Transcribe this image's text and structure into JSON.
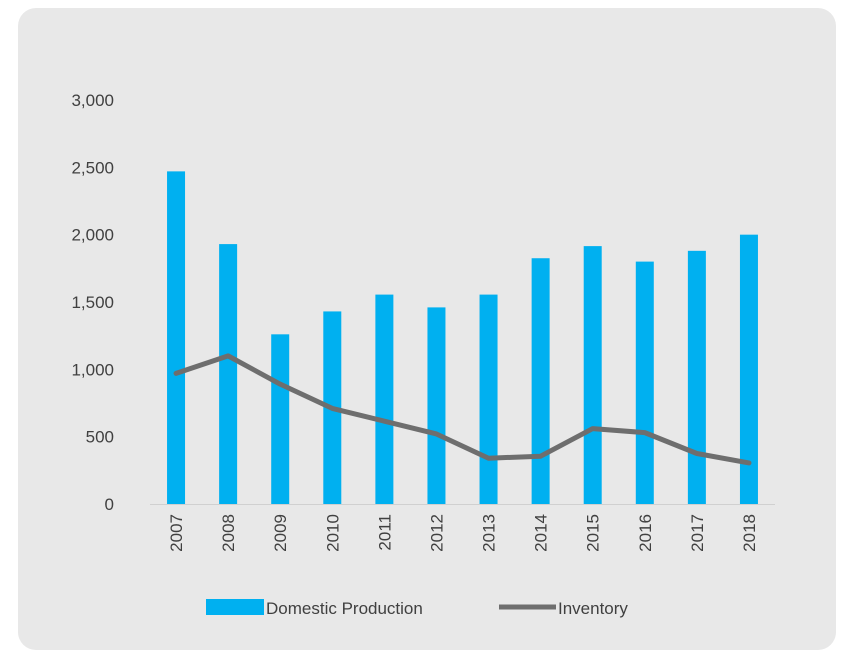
{
  "chart_data": {
    "type": "bar+line",
    "title": "",
    "xlabel": "",
    "ylabel": "",
    "ylim": [
      0,
      3000
    ],
    "yticks": [
      0,
      500,
      1000,
      1500,
      2000,
      2500,
      3000
    ],
    "ytick_labels": [
      "0",
      "500",
      "1,000",
      "1,500",
      "2,000",
      "2,500",
      "3,000"
    ],
    "categories": [
      "2007",
      "2008",
      "2009",
      "2010",
      "2011",
      "2012",
      "2013",
      "2014",
      "2015",
      "2016",
      "2017",
      "2018"
    ],
    "series": [
      {
        "name": "Domestic Production",
        "kind": "bar",
        "color": "#00b0f0",
        "values": [
          2470,
          1930,
          1260,
          1430,
          1555,
          1460,
          1555,
          1825,
          1915,
          1800,
          1880,
          2000
        ]
      },
      {
        "name": "Inventory",
        "kind": "line",
        "color": "#6e6e6e",
        "values": [
          970,
          1100,
          890,
          710,
          615,
          520,
          340,
          355,
          560,
          530,
          375,
          305
        ]
      }
    ],
    "legend_position": "bottom",
    "grid": false
  }
}
